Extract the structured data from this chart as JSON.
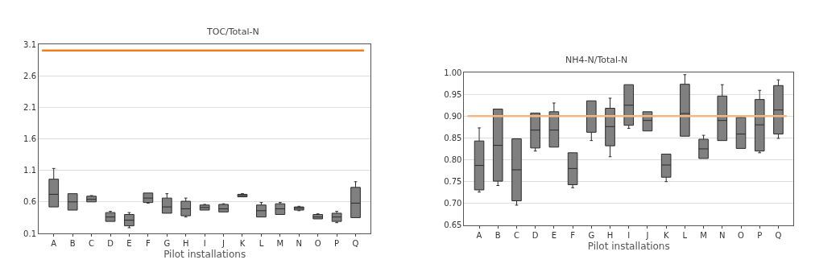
{
  "chart_data": [
    {
      "type": "box",
      "title": "TOC/Total-N",
      "xlabel": "Pilot installations",
      "color": "#808080",
      "grid": "y",
      "categories": [
        "A",
        "B",
        "C",
        "D",
        "E",
        "F",
        "G",
        "H",
        "I",
        "J",
        "K",
        "L",
        "M",
        "N",
        "O",
        "P",
        "Q"
      ],
      "ylim": [
        0.1,
        3.1
      ],
      "yticks": [
        0.1,
        0.6,
        1.1,
        1.6,
        2.1,
        2.6,
        3.1
      ],
      "ref_lines": [
        {
          "axis": "y",
          "value": 3.0,
          "color": "#f07f1a"
        }
      ],
      "boxes": [
        {
          "low": 0.52,
          "q1": 0.52,
          "median": 0.72,
          "q3": 0.96,
          "high": 1.13
        },
        {
          "low": 0.47,
          "q1": 0.47,
          "median": 0.6,
          "q3": 0.73,
          "high": 0.73
        },
        {
          "low": 0.6,
          "q1": 0.6,
          "median": 0.64,
          "q3": 0.69,
          "high": 0.7
        },
        {
          "low": 0.29,
          "q1": 0.29,
          "median": 0.36,
          "q3": 0.43,
          "high": 0.45
        },
        {
          "low": 0.19,
          "q1": 0.22,
          "median": 0.31,
          "q3": 0.4,
          "high": 0.43
        },
        {
          "low": 0.58,
          "q1": 0.59,
          "median": 0.66,
          "q3": 0.74,
          "high": 0.74
        },
        {
          "low": 0.42,
          "q1": 0.42,
          "median": 0.52,
          "q3": 0.66,
          "high": 0.73
        },
        {
          "low": 0.36,
          "q1": 0.38,
          "median": 0.49,
          "q3": 0.61,
          "high": 0.66
        },
        {
          "low": 0.47,
          "q1": 0.47,
          "median": 0.51,
          "q3": 0.55,
          "high": 0.56
        },
        {
          "low": 0.44,
          "q1": 0.44,
          "median": 0.49,
          "q3": 0.56,
          "high": 0.57
        },
        {
          "low": 0.68,
          "q1": 0.68,
          "median": 0.7,
          "q3": 0.72,
          "high": 0.73
        },
        {
          "low": 0.36,
          "q1": 0.36,
          "median": 0.46,
          "q3": 0.55,
          "high": 0.59
        },
        {
          "low": 0.4,
          "q1": 0.4,
          "median": 0.49,
          "q3": 0.57,
          "high": 0.59
        },
        {
          "low": 0.46,
          "q1": 0.47,
          "median": 0.5,
          "q3": 0.52,
          "high": 0.53
        },
        {
          "low": 0.33,
          "q1": 0.33,
          "median": 0.36,
          "q3": 0.4,
          "high": 0.41
        },
        {
          "low": 0.27,
          "q1": 0.29,
          "median": 0.36,
          "q3": 0.42,
          "high": 0.45
        },
        {
          "low": 0.35,
          "q1": 0.35,
          "median": 0.58,
          "q3": 0.83,
          "high": 0.92
        }
      ]
    },
    {
      "type": "box",
      "title": "NH4-N/Total-N",
      "xlabel": "Pilot installations",
      "color": "#808080",
      "grid": "y",
      "categories": [
        "A",
        "B",
        "C",
        "D",
        "E",
        "F",
        "G",
        "H",
        "I",
        "J",
        "K",
        "L",
        "M",
        "N",
        "O",
        "P",
        "Q"
      ],
      "ylim": [
        0.65,
        1.0
      ],
      "yticks": [
        {
          "value": 0.65,
          "label": "0.65"
        },
        {
          "value": 0.7,
          "label": "0.70"
        },
        {
          "value": 0.75,
          "label": "0.75"
        },
        {
          "value": 0.8,
          "label": "0.80"
        },
        {
          "value": 0.85,
          "label": "0.85"
        },
        {
          "value": 0.9,
          "label": "0.90"
        },
        {
          "value": 0.95,
          "label": "0.95"
        },
        {
          "value": 1.0,
          "label": "1.00"
        }
      ],
      "ref_lines": [
        {
          "axis": "y",
          "value": 0.9,
          "color": "#f5b584"
        }
      ],
      "boxes": [
        {
          "low": 0.726,
          "q1": 0.731,
          "median": 0.787,
          "q3": 0.843,
          "high": 0.873
        },
        {
          "low": 0.741,
          "q1": 0.751,
          "median": 0.833,
          "q3": 0.916,
          "high": 0.916
        },
        {
          "low": 0.696,
          "q1": 0.706,
          "median": 0.777,
          "q3": 0.848,
          "high": 0.848
        },
        {
          "low": 0.82,
          "q1": 0.827,
          "median": 0.868,
          "q3": 0.907,
          "high": 0.907
        },
        {
          "low": 0.829,
          "q1": 0.829,
          "median": 0.868,
          "q3": 0.91,
          "high": 0.93
        },
        {
          "low": 0.736,
          "q1": 0.743,
          "median": 0.78,
          "q3": 0.816,
          "high": 0.816
        },
        {
          "low": 0.844,
          "q1": 0.863,
          "median": 0.9,
          "q3": 0.935,
          "high": 0.935
        },
        {
          "low": 0.807,
          "q1": 0.832,
          "median": 0.876,
          "q3": 0.918,
          "high": 0.941
        },
        {
          "low": 0.872,
          "q1": 0.879,
          "median": 0.925,
          "q3": 0.972,
          "high": 0.972
        },
        {
          "low": 0.866,
          "q1": 0.866,
          "median": 0.89,
          "q3": 0.91,
          "high": 0.91
        },
        {
          "low": 0.75,
          "q1": 0.76,
          "median": 0.788,
          "q3": 0.813,
          "high": 0.813
        },
        {
          "low": 0.854,
          "q1": 0.854,
          "median": 0.906,
          "q3": 0.973,
          "high": 0.995
        },
        {
          "low": 0.803,
          "q1": 0.803,
          "median": 0.825,
          "q3": 0.847,
          "high": 0.856
        },
        {
          "low": 0.844,
          "q1": 0.844,
          "median": 0.89,
          "q3": 0.946,
          "high": 0.972
        },
        {
          "low": 0.826,
          "q1": 0.826,
          "median": 0.859,
          "q3": 0.897,
          "high": 0.9
        },
        {
          "low": 0.816,
          "q1": 0.82,
          "median": 0.88,
          "q3": 0.938,
          "high": 0.959
        },
        {
          "low": 0.849,
          "q1": 0.859,
          "median": 0.914,
          "q3": 0.97,
          "high": 0.983
        }
      ]
    }
  ]
}
